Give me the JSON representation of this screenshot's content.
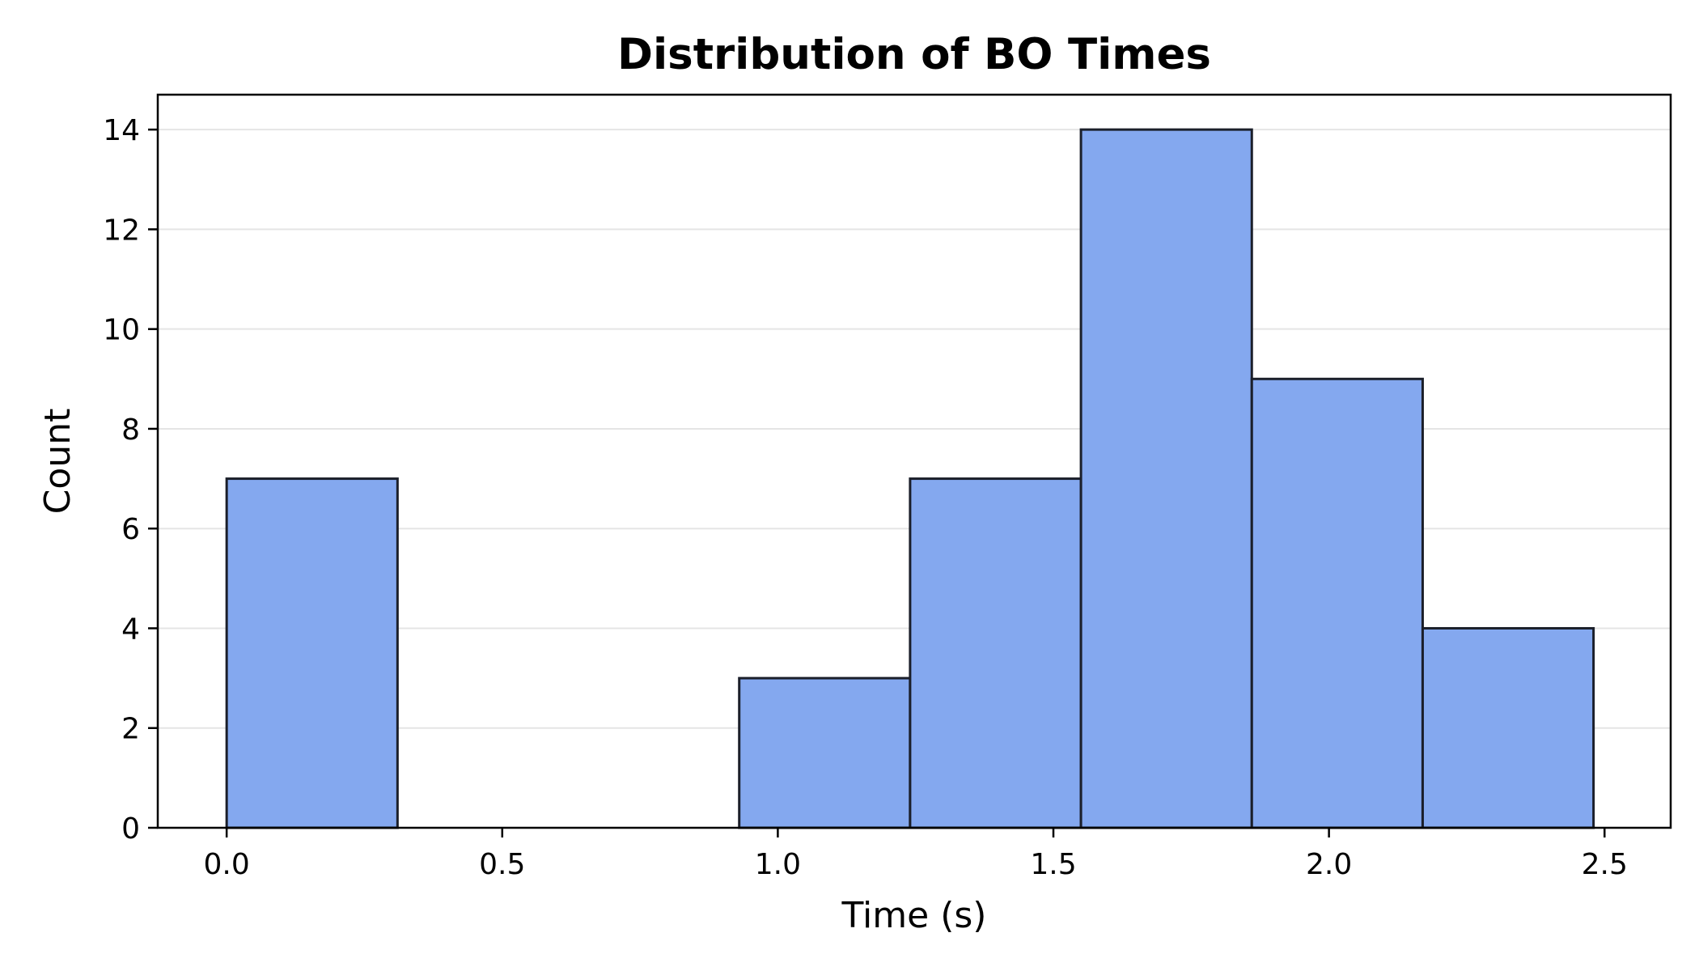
{
  "chart_data": {
    "type": "bar",
    "title": "Distribution of BO Times",
    "xlabel": "Time (s)",
    "ylabel": "Count",
    "xlim": [
      -0.125,
      2.62
    ],
    "ylim": [
      0,
      14.7
    ],
    "xticks": [
      "0.0",
      "0.5",
      "1.0",
      "1.5",
      "2.0",
      "2.5"
    ],
    "yticks": [
      "0",
      "2",
      "4",
      "6",
      "8",
      "10",
      "12",
      "14"
    ],
    "bins": [
      {
        "x0": 0.0,
        "x1": 0.31,
        "count": 7
      },
      {
        "x0": 0.31,
        "x1": 0.62,
        "count": 0
      },
      {
        "x0": 0.62,
        "x1": 0.93,
        "count": 0
      },
      {
        "x0": 0.93,
        "x1": 1.24,
        "count": 3
      },
      {
        "x0": 1.24,
        "x1": 1.55,
        "count": 7
      },
      {
        "x0": 1.55,
        "x1": 1.86,
        "count": 14
      },
      {
        "x0": 1.86,
        "x1": 2.17,
        "count": 9
      },
      {
        "x0": 2.17,
        "x1": 2.48,
        "count": 4
      }
    ],
    "grid": "horizontal",
    "colors": {
      "bar_fill": "#84a8ef",
      "bar_edge": "#1b1f2a",
      "grid": "#e5e5e5"
    }
  }
}
